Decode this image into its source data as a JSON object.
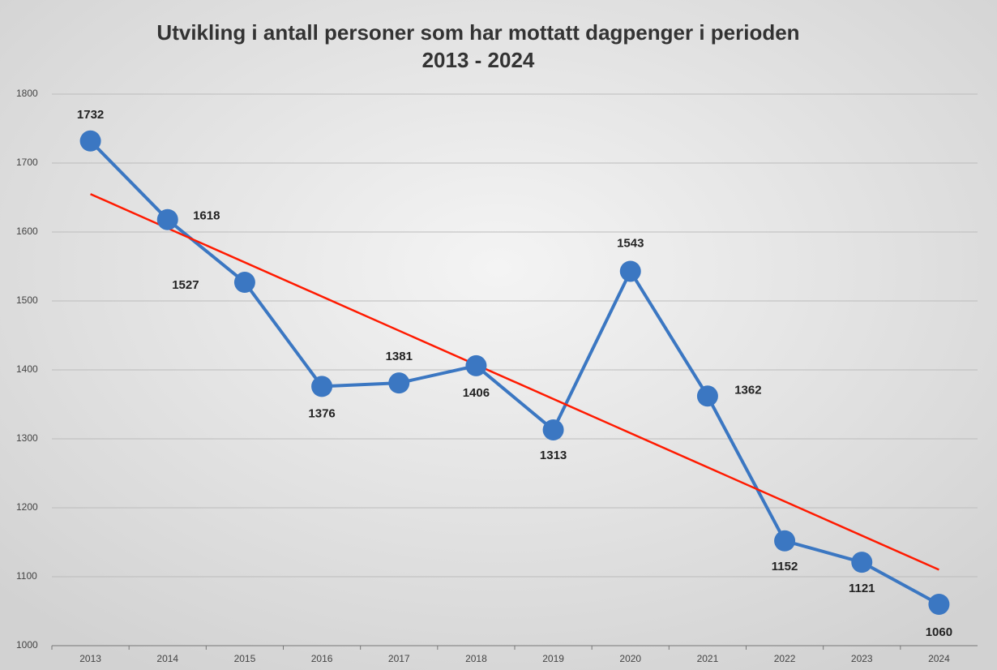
{
  "chart_data": {
    "type": "line",
    "title": [
      "Utvikling i antall personer som har mottatt dagpenger i perioden",
      "2013 - 2024"
    ],
    "categories": [
      "2013",
      "2014",
      "2015",
      "2016",
      "2017",
      "2018",
      "2019",
      "2020",
      "2021",
      "2022",
      "2023",
      "2024"
    ],
    "values": [
      1732,
      1618,
      1527,
      1376,
      1381,
      1406,
      1313,
      1543,
      1362,
      1152,
      1121,
      1060
    ],
    "color": "#3b77c2",
    "trendline": "linear",
    "trendline_color": "#ff1a00",
    "ylim": [
      1000,
      1800
    ],
    "yticks": [
      1000,
      1100,
      1200,
      1300,
      1400,
      1500,
      1600,
      1700,
      1800
    ],
    "grid": true
  }
}
